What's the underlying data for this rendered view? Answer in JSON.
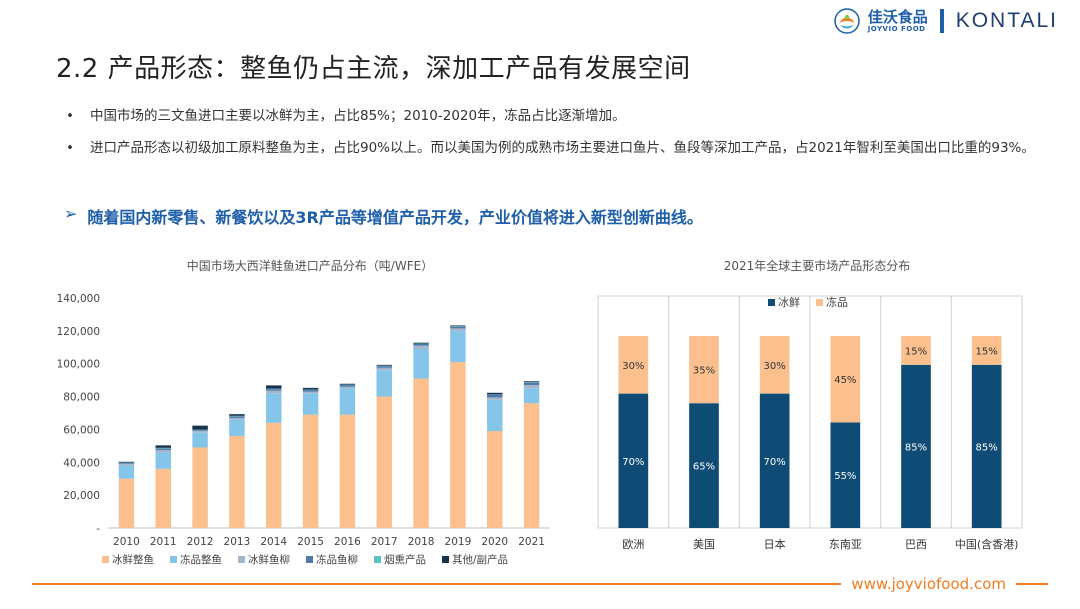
{
  "brand": {
    "name_cn": "佳沃食品",
    "name_en": "JOYVIO FOOD",
    "partner": "KONTALI",
    "accent_blue": "#1f5fa9",
    "accent_orange": "#f07c1f"
  },
  "slide": {
    "title": "2.2  产品形态：整鱼仍占主流，深加工产品有发展空间",
    "bullets": [
      "中国市场的三文鱼进口主要以冰鲜为主，占比85%；2010-2020年，冻品占比逐渐增加。",
      "进口产品形态以初级加工原料整鱼为主，占比90%以上。而以美国为例的成熟市场主要进口鱼片、鱼段等深加工产品，占2021年智利至美国出口比重的93%。"
    ],
    "highlight": "随着国内新零售、新餐饮以及3R产品等增值产品开发，产业价值将进入新型创新曲线。",
    "footer_url": "www.joyviofood.com"
  },
  "chart_data": [
    {
      "type": "bar",
      "stacked": true,
      "title": "中国市场大西洋鲑鱼进口产品分布（吨/WFE）",
      "categories": [
        "2010",
        "2011",
        "2012",
        "2013",
        "2014",
        "2015",
        "2016",
        "2017",
        "2018",
        "2019",
        "2020",
        "2021"
      ],
      "ylim": [
        0,
        140000
      ],
      "yticks": [
        0,
        20000,
        40000,
        60000,
        80000,
        100000,
        120000,
        140000
      ],
      "ytick_labels": [
        "-",
        "20,000",
        "40,000",
        "60,000",
        "80,000",
        "100,000",
        "120,000",
        "140,000"
      ],
      "legend_position": "bottom",
      "series": [
        {
          "name": "冰鲜整鱼",
          "color": "#fbc08e",
          "values": [
            30000,
            36000,
            49000,
            56000,
            64000,
            69000,
            69000,
            80000,
            91000,
            101000,
            59000,
            76000
          ]
        },
        {
          "name": "冻品整鱼",
          "color": "#86c5ea",
          "values": [
            8000,
            10000,
            9000,
            10000,
            18000,
            13000,
            16000,
            16000,
            18000,
            19000,
            19000,
            9000
          ]
        },
        {
          "name": "冰鲜鱼柳",
          "color": "#a5b6cb",
          "values": [
            1000,
            1500,
            1000,
            1000,
            1500,
            1000,
            1000,
            1500,
            2000,
            1500,
            1500,
            2000
          ]
        },
        {
          "name": "冻品鱼柳",
          "color": "#4f79a8",
          "values": [
            500,
            1000,
            500,
            1000,
            1000,
            1000,
            1000,
            1000,
            1000,
            1000,
            1500,
            1500
          ]
        },
        {
          "name": "烟熏产品",
          "color": "#5dc1c1",
          "values": [
            300,
            300,
            300,
            300,
            300,
            300,
            300,
            300,
            300,
            300,
            300,
            300
          ]
        },
        {
          "name": "其他/副产品",
          "color": "#18334d",
          "values": [
            500,
            1500,
            2500,
            1000,
            2000,
            1000,
            500,
            500,
            500,
            500,
            1000,
            500
          ]
        }
      ]
    },
    {
      "type": "bar",
      "stacked": true,
      "title": "2021年全球主要市场产品形态分布",
      "categories": [
        "欧洲",
        "美国",
        "日本",
        "东南亚",
        "巴西",
        "中国(含香港)"
      ],
      "ylim": [
        0,
        100
      ],
      "legend_position": "top",
      "series": [
        {
          "name": "冰鲜",
          "color": "#0e4c75",
          "values": [
            70,
            65,
            70,
            55,
            85,
            85
          ],
          "labels": [
            "70%",
            "65%",
            "70%",
            "55%",
            "85%",
            "85%"
          ]
        },
        {
          "name": "冻品",
          "color": "#fbc08e",
          "values": [
            30,
            35,
            30,
            45,
            15,
            15
          ],
          "labels": [
            "30%",
            "35%",
            "30%",
            "45%",
            "15%",
            "15%"
          ]
        }
      ]
    }
  ]
}
